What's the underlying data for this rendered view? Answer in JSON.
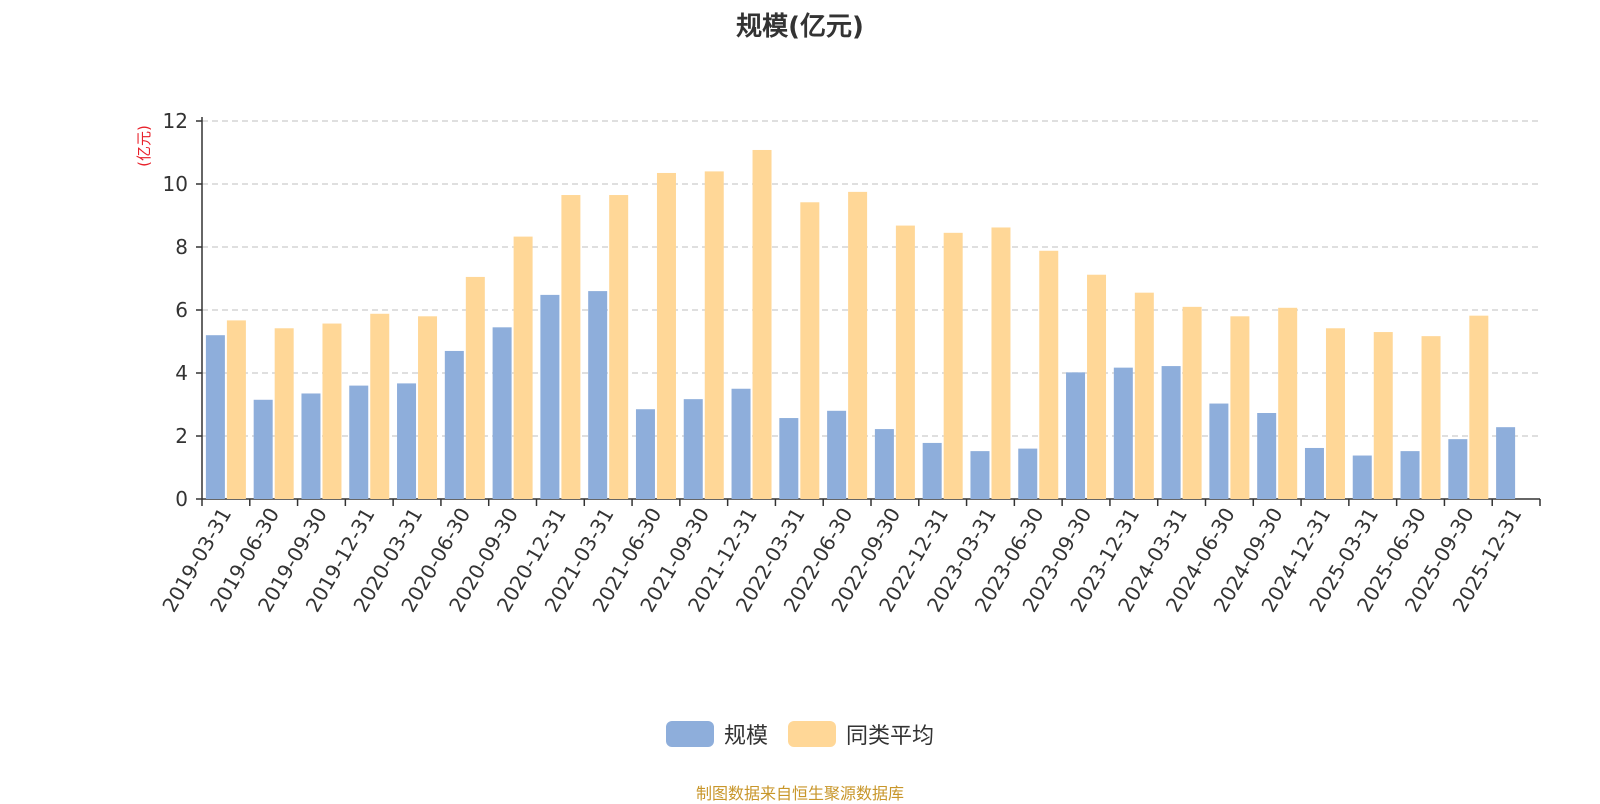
{
  "title": "规模(亿元)",
  "source": "制图数据来自恒生聚源数据库",
  "colors": {
    "series1": "#8eaedb",
    "series2": "#ffd797",
    "unit_label": "#e8202a",
    "source": "#c8962a"
  },
  "chart_data": {
    "type": "bar",
    "title": "规模(亿元)",
    "ylabel": "(亿元)",
    "xlabel": "",
    "ylim": [
      0,
      12
    ],
    "yticks": [
      0,
      2,
      4,
      6,
      8,
      10,
      12
    ],
    "grid": true,
    "legend_position": "bottom",
    "categories": [
      "2019-03-31",
      "2019-06-30",
      "2019-09-30",
      "2019-12-31",
      "2020-03-31",
      "2020-06-30",
      "2020-09-30",
      "2020-12-31",
      "2021-03-31",
      "2021-06-30",
      "2021-09-30",
      "2021-12-31",
      "2022-03-31",
      "2022-06-30",
      "2022-09-30",
      "2022-12-31",
      "2023-03-31",
      "2023-06-30",
      "2023-09-30",
      "2023-12-31",
      "2024-03-31",
      "2024-06-30",
      "2024-09-30",
      "2024-12-31",
      "2025-03-31",
      "2025-06-30",
      "2025-09-30",
      "2025-12-31"
    ],
    "series": [
      {
        "name": "规模",
        "color": "#8eaedb",
        "values": [
          5.2,
          3.15,
          3.35,
          3.6,
          3.67,
          4.7,
          5.45,
          6.48,
          6.6,
          2.85,
          3.17,
          3.5,
          2.57,
          2.8,
          2.22,
          1.78,
          1.52,
          1.6,
          4.02,
          4.17,
          4.22,
          3.03,
          2.73,
          1.62,
          1.38,
          1.52,
          1.9,
          2.28
        ]
      },
      {
        "name": "同类平均",
        "color": "#ffd797",
        "values": [
          5.67,
          5.42,
          5.57,
          5.88,
          5.8,
          7.05,
          8.33,
          9.65,
          9.65,
          10.35,
          10.4,
          11.08,
          9.42,
          9.75,
          8.68,
          8.45,
          8.62,
          7.88,
          7.12,
          6.55,
          6.1,
          5.8,
          6.07,
          5.42,
          5.3,
          5.17,
          5.82,
          null
        ]
      }
    ]
  }
}
